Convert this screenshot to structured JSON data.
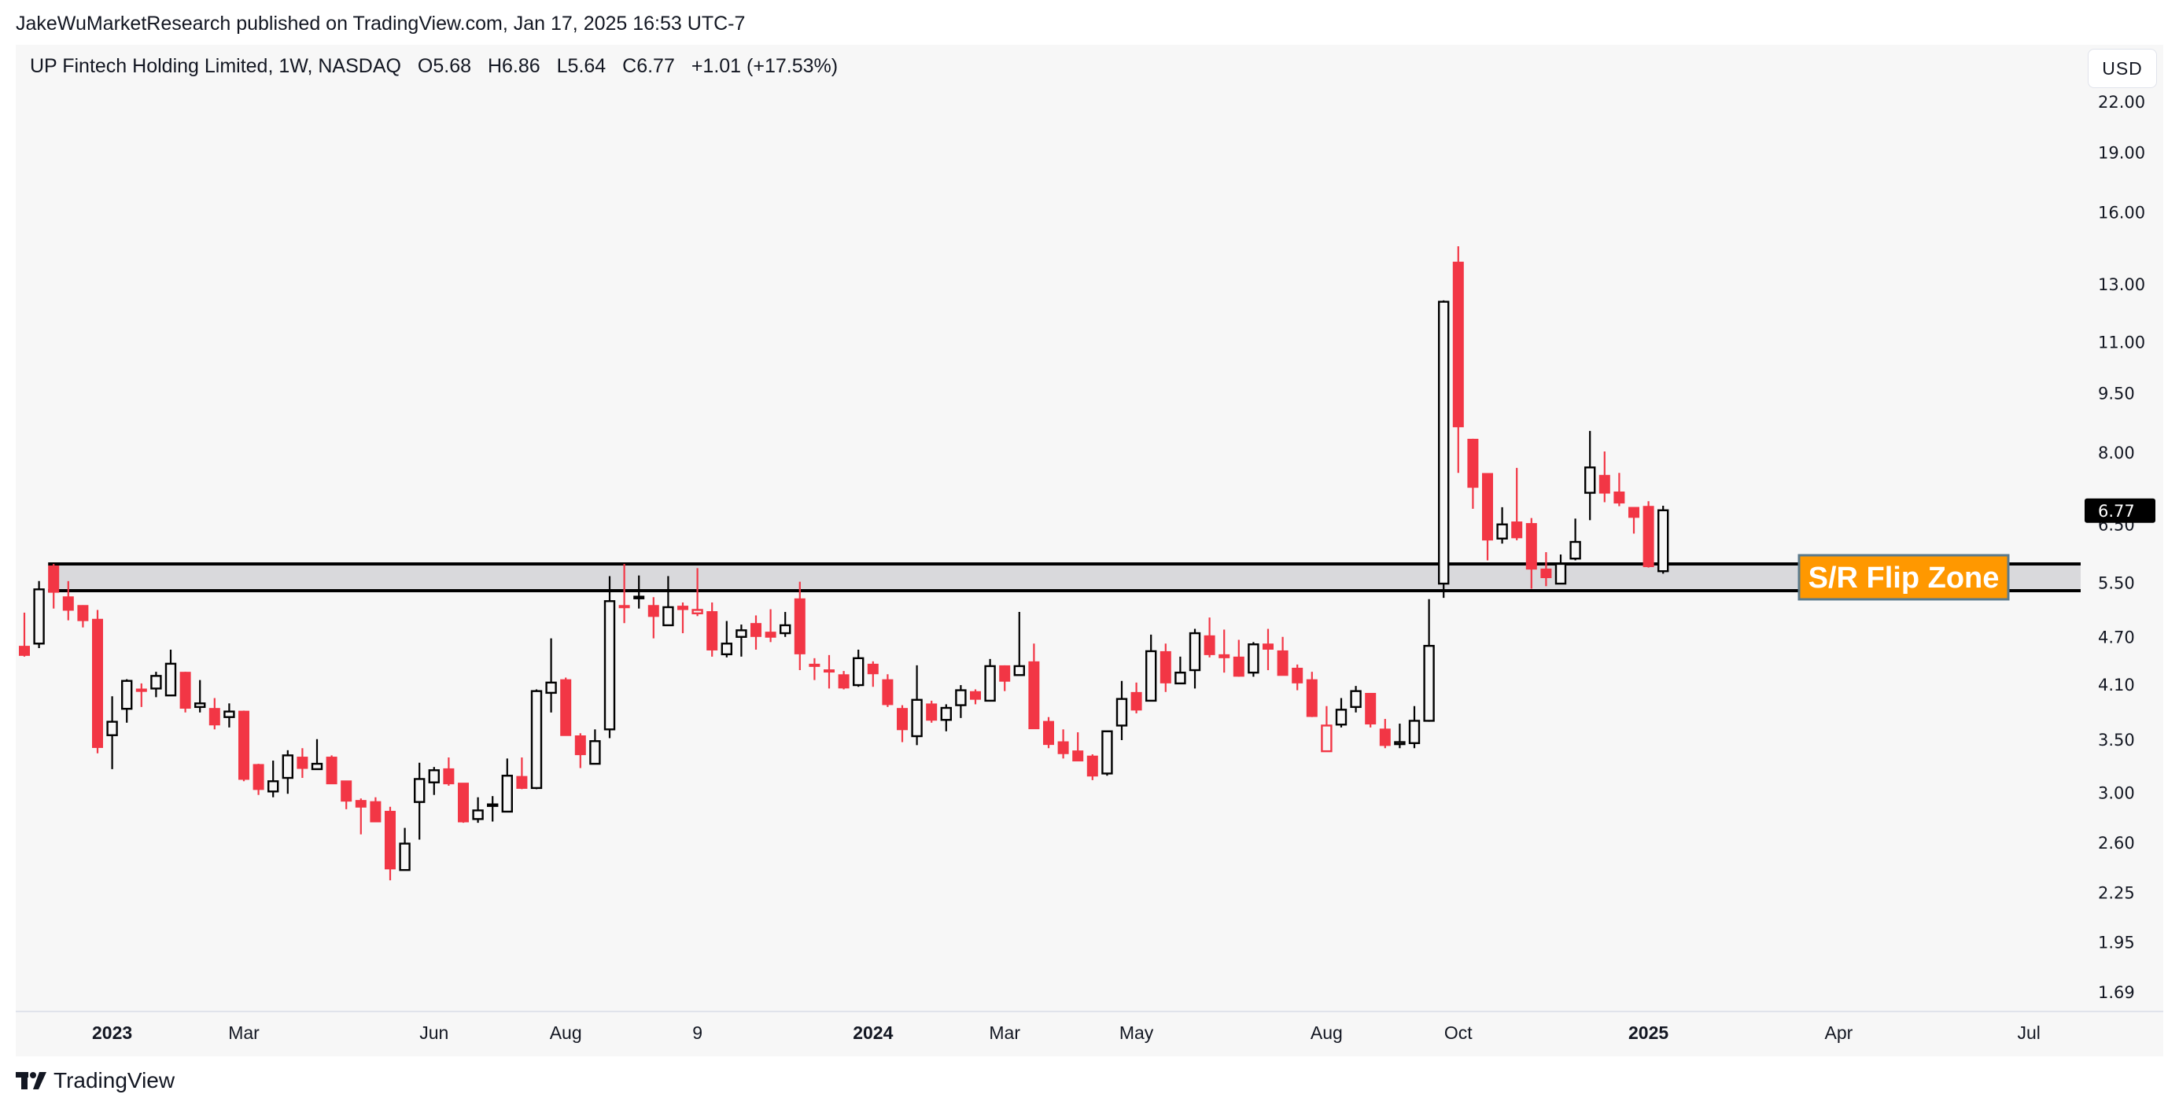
{
  "header": {
    "publisher_line": "JakeWuMarketResearch published on TradingView.com, Jan 17, 2025 16:53 UTC-7"
  },
  "legend": {
    "symbol": "UP Fintech Holding Limited, 1W, NASDAQ",
    "open": "O5.68",
    "high": "H6.86",
    "low": "L5.64",
    "close": "C6.77",
    "change": "+1.01 (+17.53%)"
  },
  "price_axis": {
    "currency": "USD",
    "last_price": "6.77"
  },
  "annotation": {
    "label": "S/R Flip Zone",
    "zone_low": 5.37,
    "zone_high": 5.8
  },
  "footer": {
    "brand": "TradingView",
    "logo_icon": "tradingview-logo-icon"
  },
  "colors": {
    "down": "#F23645",
    "up": "#000000",
    "zone_fill": "#D9D9DC",
    "zone_line": "#000000",
    "label_bg": "#FF9800",
    "label_border": "#5B7A8C",
    "label_text": "#FFFFFF",
    "last_price_bg": "#000000",
    "background": "#F7F7F7"
  },
  "chart_data": {
    "type": "candlestick",
    "style": "hollow candles",
    "y_scale": "log",
    "ylim": [
      1.6,
      25.9
    ],
    "grid": false,
    "y_ticks": [
      "22.00",
      "19.00",
      "16.00",
      "13.00",
      "11.00",
      "9.50",
      "8.00",
      "6.50",
      "5.50",
      "4.70",
      "4.10",
      "3.50",
      "3.00",
      "2.60",
      "2.25",
      "1.95",
      "1.69"
    ],
    "x_ticks": [
      {
        "label": "2023",
        "date": "2023-01-02",
        "bold": true
      },
      {
        "label": "Mar",
        "date": "2023-03-06"
      },
      {
        "label": "Jun",
        "date": "2023-06-05"
      },
      {
        "label": "Aug",
        "date": "2023-08-07"
      },
      {
        "label": "9",
        "date": "2023-10-09"
      },
      {
        "label": "2024",
        "date": "2024-01-01",
        "bold": true
      },
      {
        "label": "Mar",
        "date": "2024-03-04"
      },
      {
        "label": "May",
        "date": "2024-05-06"
      },
      {
        "label": "Aug",
        "date": "2024-08-05"
      },
      {
        "label": "Oct",
        "date": "2024-10-07"
      },
      {
        "label": "2025",
        "date": "2025-01-06",
        "bold": true
      },
      {
        "label": "Apr",
        "date": "2025-04-07"
      },
      {
        "label": "Jul",
        "date": "2025-07-07"
      }
    ],
    "candles_columns": [
      "date",
      "open",
      "high",
      "low",
      "close"
    ],
    "candles": [
      [
        "2022-11-21",
        4.57,
        5.04,
        4.44,
        4.46
      ],
      [
        "2022-11-28",
        4.61,
        5.52,
        4.55,
        5.39
      ],
      [
        "2022-12-05",
        5.76,
        5.8,
        5.1,
        5.35
      ],
      [
        "2022-12-12",
        5.27,
        5.52,
        4.93,
        5.08
      ],
      [
        "2022-12-19",
        5.14,
        5.15,
        4.83,
        4.93
      ],
      [
        "2022-12-26",
        4.94,
        5.08,
        3.36,
        3.42
      ],
      [
        "2023-01-02",
        3.54,
        3.96,
        3.21,
        3.68
      ],
      [
        "2023-01-09",
        3.82,
        4.16,
        3.67,
        4.14
      ],
      [
        "2023-01-16",
        4.04,
        4.11,
        3.84,
        4.02
      ],
      [
        "2023-01-23",
        4.05,
        4.25,
        3.95,
        4.2
      ],
      [
        "2023-01-30",
        3.97,
        4.53,
        3.97,
        4.35
      ],
      [
        "2023-02-06",
        4.24,
        4.25,
        3.78,
        3.83
      ],
      [
        "2023-02-13",
        3.84,
        4.15,
        3.78,
        3.88
      ],
      [
        "2023-02-20",
        3.82,
        3.94,
        3.6,
        3.65
      ],
      [
        "2023-02-27",
        3.73,
        3.88,
        3.62,
        3.79
      ],
      [
        "2023-03-06",
        3.79,
        3.8,
        3.1,
        3.12
      ],
      [
        "2023-03-13",
        3.25,
        3.26,
        2.98,
        3.03
      ],
      [
        "2023-03-20",
        3.01,
        3.29,
        2.96,
        3.1
      ],
      [
        "2023-03-27",
        3.13,
        3.39,
        2.99,
        3.34
      ],
      [
        "2023-04-03",
        3.32,
        3.41,
        3.13,
        3.22
      ],
      [
        "2023-04-10",
        3.21,
        3.5,
        3.21,
        3.26
      ],
      [
        "2023-04-17",
        3.32,
        3.34,
        3.08,
        3.08
      ],
      [
        "2023-04-24",
        3.1,
        3.1,
        2.86,
        2.93
      ],
      [
        "2023-05-01",
        2.93,
        2.95,
        2.66,
        2.88
      ],
      [
        "2023-05-08",
        2.92,
        2.96,
        2.76,
        2.76
      ],
      [
        "2023-05-15",
        2.84,
        2.88,
        2.33,
        2.41
      ],
      [
        "2023-05-22",
        2.4,
        2.71,
        2.4,
        2.59
      ],
      [
        "2023-05-29",
        2.92,
        3.27,
        2.62,
        3.12
      ],
      [
        "2023-06-05",
        3.09,
        3.23,
        2.98,
        3.2
      ],
      [
        "2023-06-12",
        3.21,
        3.32,
        3.06,
        3.08
      ],
      [
        "2023-06-19",
        3.08,
        3.08,
        2.75,
        2.76
      ],
      [
        "2023-06-26",
        2.78,
        2.96,
        2.75,
        2.85
      ],
      [
        "2023-07-03",
        2.89,
        2.97,
        2.76,
        2.9
      ],
      [
        "2023-07-10",
        2.84,
        3.31,
        2.84,
        3.15
      ],
      [
        "2023-07-17",
        3.14,
        3.32,
        3.03,
        3.04
      ],
      [
        "2023-07-24",
        3.04,
        4.04,
        3.03,
        4.02
      ],
      [
        "2023-07-31",
        4.0,
        4.68,
        3.78,
        4.12
      ],
      [
        "2023-08-07",
        4.15,
        4.18,
        3.54,
        3.54
      ],
      [
        "2023-08-14",
        3.53,
        3.56,
        3.22,
        3.35
      ],
      [
        "2023-08-21",
        3.26,
        3.6,
        3.26,
        3.48
      ],
      [
        "2023-08-28",
        3.6,
        5.6,
        3.51,
        5.21
      ],
      [
        "2023-09-04",
        5.14,
        5.8,
        4.89,
        5.13
      ],
      [
        "2023-09-11",
        5.28,
        5.61,
        5.1,
        5.25
      ],
      [
        "2023-09-18",
        5.14,
        5.27,
        4.68,
        4.99
      ],
      [
        "2023-09-25",
        4.86,
        5.6,
        4.86,
        5.12
      ],
      [
        "2023-10-02",
        5.13,
        5.19,
        4.75,
        5.09
      ],
      [
        "2023-10-09",
        5.03,
        5.73,
        4.99,
        5.08
      ],
      [
        "2023-10-16",
        5.05,
        5.19,
        4.44,
        4.53
      ],
      [
        "2023-10-23",
        4.47,
        4.92,
        4.43,
        4.61
      ],
      [
        "2023-10-30",
        4.7,
        4.87,
        4.44,
        4.79
      ],
      [
        "2023-11-06",
        4.88,
        5.0,
        4.53,
        4.71
      ],
      [
        "2023-11-13",
        4.76,
        5.09,
        4.63,
        4.7
      ],
      [
        "2023-11-20",
        4.75,
        5.05,
        4.7,
        4.86
      ],
      [
        "2023-11-27",
        5.24,
        5.51,
        4.27,
        4.48
      ],
      [
        "2023-12-04",
        4.34,
        4.42,
        4.15,
        4.33
      ],
      [
        "2023-12-11",
        4.27,
        4.46,
        4.05,
        4.26
      ],
      [
        "2023-12-18",
        4.21,
        4.26,
        4.04,
        4.06
      ],
      [
        "2023-12-25",
        4.09,
        4.53,
        4.07,
        4.42
      ],
      [
        "2024-01-01",
        4.34,
        4.38,
        4.07,
        4.23
      ],
      [
        "2024-01-08",
        4.15,
        4.22,
        3.84,
        3.87
      ],
      [
        "2024-01-15",
        3.82,
        3.86,
        3.47,
        3.6
      ],
      [
        "2024-01-22",
        3.53,
        4.33,
        3.44,
        3.92
      ],
      [
        "2024-01-29",
        3.87,
        3.91,
        3.67,
        3.7
      ],
      [
        "2024-02-05",
        3.7,
        3.87,
        3.58,
        3.83
      ],
      [
        "2024-02-12",
        3.86,
        4.09,
        3.72,
        4.03
      ],
      [
        "2024-02-19",
        4.01,
        4.04,
        3.87,
        3.93
      ],
      [
        "2024-02-26",
        3.91,
        4.41,
        3.9,
        4.32
      ],
      [
        "2024-03-04",
        4.32,
        4.33,
        4.02,
        4.14
      ],
      [
        "2024-03-11",
        4.21,
        5.05,
        4.21,
        4.32
      ],
      [
        "2024-03-18",
        4.37,
        4.61,
        3.61,
        3.61
      ],
      [
        "2024-03-25",
        3.68,
        3.73,
        3.41,
        3.45
      ],
      [
        "2024-04-01",
        3.47,
        3.6,
        3.31,
        3.36
      ],
      [
        "2024-04-08",
        3.38,
        3.57,
        3.29,
        3.29
      ],
      [
        "2024-04-15",
        3.33,
        3.35,
        3.11,
        3.15
      ],
      [
        "2024-04-22",
        3.17,
        3.58,
        3.15,
        3.58
      ],
      [
        "2024-04-29",
        3.64,
        4.14,
        3.49,
        3.93
      ],
      [
        "2024-05-06",
        4.0,
        4.12,
        3.77,
        3.81
      ],
      [
        "2024-05-13",
        3.91,
        4.73,
        3.91,
        4.51
      ],
      [
        "2024-05-20",
        4.5,
        4.61,
        4.01,
        4.12
      ],
      [
        "2024-05-27",
        4.11,
        4.44,
        4.11,
        4.24
      ],
      [
        "2024-06-03",
        4.27,
        4.81,
        4.05,
        4.75
      ],
      [
        "2024-06-10",
        4.71,
        4.97,
        4.43,
        4.47
      ],
      [
        "2024-06-17",
        4.46,
        4.8,
        4.24,
        4.43
      ],
      [
        "2024-06-24",
        4.43,
        4.66,
        4.19,
        4.2
      ],
      [
        "2024-07-01",
        4.24,
        4.63,
        4.19,
        4.6
      ],
      [
        "2024-07-08",
        4.6,
        4.81,
        4.27,
        4.54
      ],
      [
        "2024-07-15",
        4.51,
        4.7,
        4.21,
        4.21
      ],
      [
        "2024-07-22",
        4.29,
        4.34,
        4.03,
        4.12
      ],
      [
        "2024-07-29",
        4.15,
        4.25,
        3.73,
        3.74
      ],
      [
        "2024-08-05",
        3.38,
        3.85,
        3.38,
        3.64
      ],
      [
        "2024-08-12",
        3.65,
        3.94,
        3.62,
        3.81
      ],
      [
        "2024-08-19",
        3.84,
        4.08,
        3.78,
        4.02
      ],
      [
        "2024-08-26",
        3.99,
        3.99,
        3.62,
        3.66
      ],
      [
        "2024-09-02",
        3.6,
        3.71,
        3.41,
        3.44
      ],
      [
        "2024-09-09",
        3.45,
        3.66,
        3.41,
        3.47
      ],
      [
        "2024-09-16",
        3.46,
        3.85,
        3.41,
        3.69
      ],
      [
        "2024-09-23",
        3.69,
        5.24,
        3.68,
        4.58
      ],
      [
        "2024-09-30",
        5.48,
        12.4,
        5.26,
        12.35
      ],
      [
        "2024-10-07",
        13.83,
        14.49,
        7.54,
        8.62
      ],
      [
        "2024-10-14",
        8.3,
        8.32,
        6.8,
        7.24
      ],
      [
        "2024-10-21",
        7.52,
        7.53,
        5.86,
        6.22
      ],
      [
        "2024-10-28",
        6.24,
        6.83,
        6.15,
        6.5
      ],
      [
        "2024-11-04",
        6.54,
        7.65,
        6.21,
        6.26
      ],
      [
        "2024-11-11",
        6.51,
        6.62,
        5.4,
        5.72
      ],
      [
        "2024-11-18",
        5.71,
        6.0,
        5.44,
        5.58
      ],
      [
        "2024-11-25",
        5.48,
        5.96,
        5.48,
        5.8
      ],
      [
        "2024-12-02",
        5.89,
        6.61,
        5.86,
        6.18
      ],
      [
        "2024-12-09",
        7.12,
        8.51,
        6.58,
        7.66
      ],
      [
        "2024-12-16",
        7.48,
        8.02,
        6.93,
        7.12
      ],
      [
        "2024-12-23",
        7.13,
        7.54,
        6.85,
        6.92
      ],
      [
        "2024-12-30",
        6.82,
        6.82,
        6.33,
        6.64
      ],
      [
        "2025-01-06",
        6.84,
        6.95,
        5.74,
        5.76
      ],
      [
        "2025-01-13",
        5.68,
        6.86,
        5.64,
        6.77
      ]
    ]
  }
}
